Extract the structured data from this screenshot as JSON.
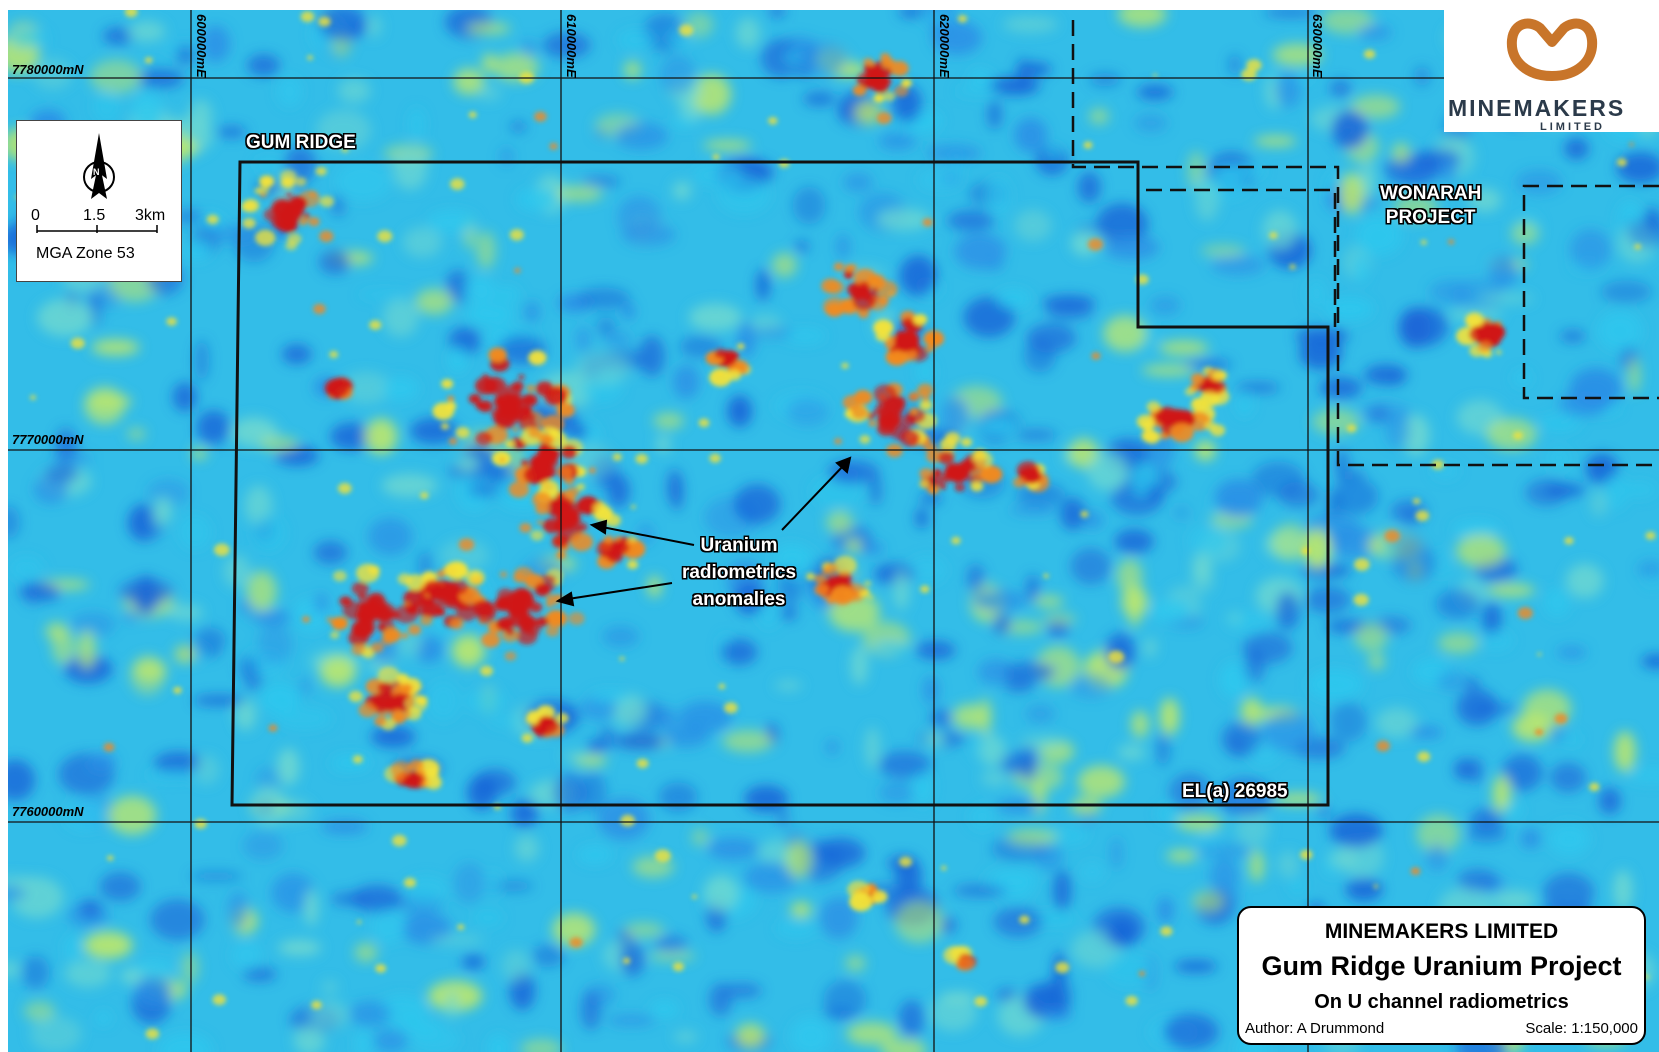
{
  "map": {
    "northings": [
      {
        "label": "7780000mN",
        "value": 7780000
      },
      {
        "label": "7770000mN",
        "value": 7770000
      },
      {
        "label": "7760000mN",
        "value": 7760000
      }
    ],
    "eastings": [
      {
        "label": "600000mE",
        "value": 600000
      },
      {
        "label": "610000mE",
        "value": 610000
      },
      {
        "label": "620000mE",
        "value": 620000
      },
      {
        "label": "630000mE",
        "value": 630000
      }
    ],
    "labels": {
      "gum_ridge": "GUM RIDGE",
      "wonarah_line1": "WONARAH",
      "wonarah_line2": "PROJECT",
      "tenement": "EL(a) 26985"
    },
    "annotation": {
      "line1": "Uranium",
      "line2": "radiometrics",
      "line3": "anomalies"
    },
    "colors": {
      "background_high": "#1a66d8",
      "background_mid": "#2ec8ee",
      "anomaly_low": "#f2e23a",
      "anomaly_mid": "#f28a1e",
      "anomaly_high": "#d01818"
    }
  },
  "north_scale": {
    "north_letter": "N",
    "scale_ticks": [
      "0",
      "1.5",
      "3km"
    ],
    "datum": "MGA Zone 53"
  },
  "logo": {
    "name": "MINEMAKERS",
    "sub": "LIMITED",
    "color": "#c8752a"
  },
  "title_block": {
    "company": "MINEMAKERS LIMITED",
    "project": "Gum Ridge Uranium Project",
    "subtitle": "On U channel radiometrics",
    "author": "Author:  A Drummond",
    "scale": "Scale: 1:150,000"
  }
}
